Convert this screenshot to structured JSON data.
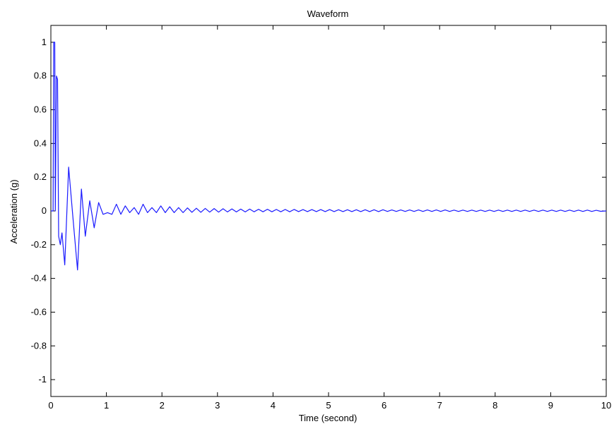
{
  "chart_data": {
    "type": "line",
    "title": "Waveform",
    "xlabel": "Time (second)",
    "ylabel": "Acceleration (g)",
    "xlim": [
      0,
      10
    ],
    "ylim": [
      -1.1,
      1.1
    ],
    "xticks": [
      0,
      1,
      2,
      3,
      4,
      5,
      6,
      7,
      8,
      9,
      10
    ],
    "yticks": [
      -1,
      -0.8,
      -0.6,
      -0.4,
      -0.2,
      0,
      0.2,
      0.4,
      0.6,
      0.8,
      1
    ],
    "grid": false,
    "line_color": "#1a1aff",
    "series": [
      {
        "x": [
          0,
          0.04,
          0.05,
          0.07,
          0.08,
          0.1,
          0.12,
          0.14,
          0.17,
          0.2,
          0.25,
          0.32,
          0.4,
          0.48,
          0.55,
          0.62,
          0.7,
          0.78,
          0.86,
          0.94,
          1.02,
          1.1,
          1.18,
          1.26,
          1.34,
          1.42,
          1.5,
          1.58,
          1.66,
          1.74,
          1.82,
          1.9,
          1.98,
          2.06,
          2.14,
          2.22,
          2.3,
          2.38,
          2.46,
          2.54,
          2.62,
          2.7,
          2.78,
          2.86,
          2.94,
          3.02,
          3.1,
          3.18,
          3.26,
          3.34,
          3.42,
          3.5,
          3.58,
          3.66,
          3.74,
          3.82,
          3.9,
          3.98,
          4.06,
          4.14,
          4.22,
          4.3,
          4.38,
          4.46,
          4.54,
          4.62,
          4.7,
          4.78,
          4.86,
          4.94,
          5.02,
          5.1,
          5.18,
          5.26,
          5.34,
          5.42,
          5.5,
          5.58,
          5.66,
          5.74,
          5.82,
          5.9,
          5.98,
          6.06,
          6.14,
          6.22,
          6.3,
          6.38,
          6.46,
          6.54,
          6.62,
          6.7,
          6.78,
          6.86,
          6.94,
          7.02,
          7.1,
          7.18,
          7.26,
          7.34,
          7.42,
          7.5,
          7.58,
          7.66,
          7.74,
          7.82,
          7.9,
          7.98,
          8.06,
          8.14,
          8.22,
          8.3,
          8.38,
          8.46,
          8.54,
          8.62,
          8.7,
          8.78,
          8.86,
          8.94,
          9.02,
          9.1,
          9.18,
          9.26,
          9.34,
          9.42,
          9.5,
          9.58,
          9.66,
          9.74,
          9.82,
          9.9,
          10.0
        ],
        "y": [
          0,
          0,
          1.0,
          1.0,
          0.0,
          0.8,
          0.78,
          -0.15,
          -0.2,
          -0.13,
          -0.32,
          0.26,
          -0.05,
          -0.35,
          0.13,
          -0.15,
          0.06,
          -0.1,
          0.05,
          -0.02,
          -0.01,
          -0.02,
          0.04,
          -0.02,
          0.03,
          -0.01,
          0.02,
          -0.02,
          0.04,
          -0.01,
          0.02,
          -0.01,
          0.03,
          -0.01,
          0.025,
          -0.01,
          0.02,
          -0.01,
          0.018,
          -0.008,
          0.016,
          -0.008,
          0.015,
          -0.007,
          0.014,
          -0.007,
          0.013,
          -0.006,
          0.012,
          -0.006,
          0.011,
          -0.006,
          0.011,
          -0.005,
          0.01,
          -0.005,
          0.01,
          -0.005,
          0.009,
          -0.005,
          0.009,
          -0.005,
          0.009,
          -0.004,
          0.008,
          -0.004,
          0.008,
          -0.004,
          0.008,
          -0.004,
          0.008,
          -0.004,
          0.007,
          -0.004,
          0.007,
          -0.004,
          0.007,
          -0.004,
          0.007,
          -0.004,
          0.007,
          -0.004,
          0.007,
          -0.003,
          0.006,
          -0.003,
          0.006,
          -0.003,
          0.006,
          -0.003,
          0.006,
          -0.003,
          0.006,
          -0.003,
          0.006,
          -0.003,
          0.006,
          -0.003,
          0.005,
          -0.003,
          0.005,
          -0.003,
          0.005,
          -0.003,
          0.005,
          -0.003,
          0.005,
          -0.003,
          0.005,
          -0.003,
          0.005,
          -0.003,
          0.005,
          -0.003,
          0.005,
          -0.003,
          0.005,
          -0.003,
          0.005,
          -0.003,
          0.005,
          -0.003,
          0.005,
          -0.003,
          0.005,
          -0.003,
          0.005,
          -0.003,
          0.005,
          -0.003,
          0.004,
          -0.002,
          0.0
        ]
      }
    ]
  }
}
